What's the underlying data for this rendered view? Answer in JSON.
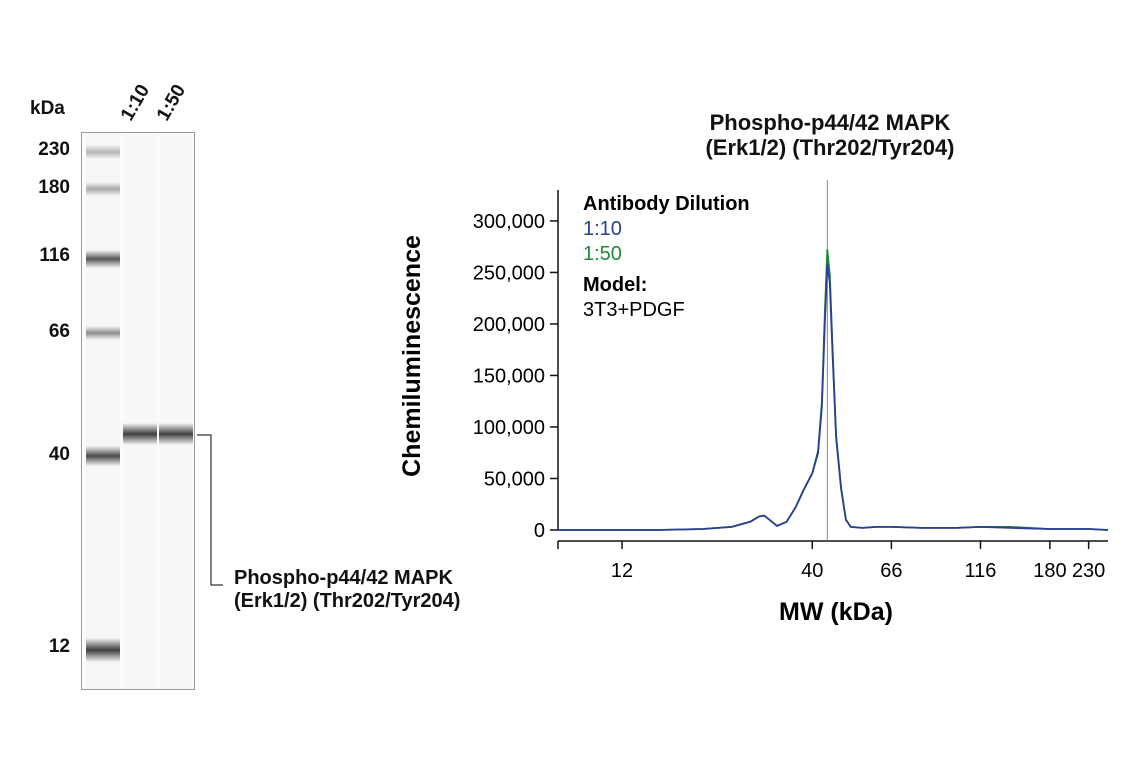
{
  "gel": {
    "kda_header": "kDa",
    "lane_headers": [
      "1:10",
      "1:50"
    ],
    "ladder": [
      {
        "label": "230",
        "key": "m230"
      },
      {
        "label": "180",
        "key": "m180"
      },
      {
        "label": "116",
        "key": "m116"
      },
      {
        "label": "66",
        "key": "m66"
      },
      {
        "label": "40",
        "key": "m40"
      },
      {
        "label": "12",
        "key": "m12"
      }
    ],
    "target_label_line1": "Phospho-p44/42 MAPK",
    "target_label_line2": "(Erk1/2) (Thr202/Tyr204)"
  },
  "chart_data": {
    "type": "line",
    "title_line1": "Phospho-p44/42 MAPK",
    "title_line2": "(Erk1/2) (Thr202/Tyr204)",
    "xlabel": "MW (kDa)",
    "ylabel": "Chemiluminescence",
    "x_scale": "log",
    "xlim": [
      8,
      260
    ],
    "ylim": [
      0,
      330000
    ],
    "x_ticks": [
      12,
      40,
      66,
      116,
      180,
      230
    ],
    "x_tick_labels": [
      "12",
      "40",
      "66",
      "116",
      "180",
      "230"
    ],
    "y_ticks": [
      0,
      50000,
      100000,
      150000,
      200000,
      250000,
      300000
    ],
    "y_tick_labels": [
      "0",
      "50,000",
      "100,000",
      "150,000",
      "200,000",
      "250,000",
      "300,000"
    ],
    "reference_line_x": 44,
    "legend": {
      "heading": "Antibody Dilution",
      "model_heading": "Model:",
      "model_value": "3T3+PDGF"
    },
    "series": [
      {
        "name": "1:10",
        "color": "#2b3f93",
        "points": [
          [
            8,
            0
          ],
          [
            10,
            0
          ],
          [
            15,
            0
          ],
          [
            20,
            1000
          ],
          [
            24,
            3000
          ],
          [
            27,
            8000
          ],
          [
            28.5,
            13000
          ],
          [
            29.5,
            14000
          ],
          [
            30.5,
            10000
          ],
          [
            32,
            4000
          ],
          [
            34,
            8000
          ],
          [
            36,
            22000
          ],
          [
            38,
            40000
          ],
          [
            40,
            55000
          ],
          [
            41.5,
            75000
          ],
          [
            42.5,
            120000
          ],
          [
            43.3,
            200000
          ],
          [
            44,
            258000
          ],
          [
            44.7,
            240000
          ],
          [
            45.5,
            170000
          ],
          [
            46.5,
            90000
          ],
          [
            48,
            40000
          ],
          [
            49.5,
            10000
          ],
          [
            51,
            3000
          ],
          [
            55,
            2000
          ],
          [
            60,
            3000
          ],
          [
            66,
            3000
          ],
          [
            80,
            2000
          ],
          [
            100,
            2000
          ],
          [
            116,
            3000
          ],
          [
            140,
            2000
          ],
          [
            180,
            1000
          ],
          [
            230,
            1000
          ],
          [
            260,
            0
          ]
        ]
      },
      {
        "name": "1:50",
        "color": "#1f8a3a",
        "points": [
          [
            8,
            0
          ],
          [
            10,
            0
          ],
          [
            15,
            0
          ],
          [
            20,
            1000
          ],
          [
            24,
            3000
          ],
          [
            27,
            8000
          ],
          [
            28.5,
            13000
          ],
          [
            29.5,
            14000
          ],
          [
            30.5,
            10000
          ],
          [
            32,
            4000
          ],
          [
            34,
            8000
          ],
          [
            36,
            22000
          ],
          [
            38,
            40000
          ],
          [
            40,
            55000
          ],
          [
            41.5,
            77000
          ],
          [
            42.5,
            125000
          ],
          [
            43.3,
            210000
          ],
          [
            44,
            272000
          ],
          [
            44.7,
            248000
          ],
          [
            45.5,
            175000
          ],
          [
            46.5,
            92000
          ],
          [
            48,
            41000
          ],
          [
            49.5,
            10000
          ],
          [
            51,
            3000
          ],
          [
            55,
            2000
          ],
          [
            60,
            3000
          ],
          [
            66,
            3000
          ],
          [
            80,
            2000
          ],
          [
            100,
            2000
          ],
          [
            116,
            3000
          ],
          [
            140,
            3000
          ],
          [
            180,
            1000
          ],
          [
            230,
            1000
          ],
          [
            260,
            0
          ]
        ]
      }
    ]
  }
}
